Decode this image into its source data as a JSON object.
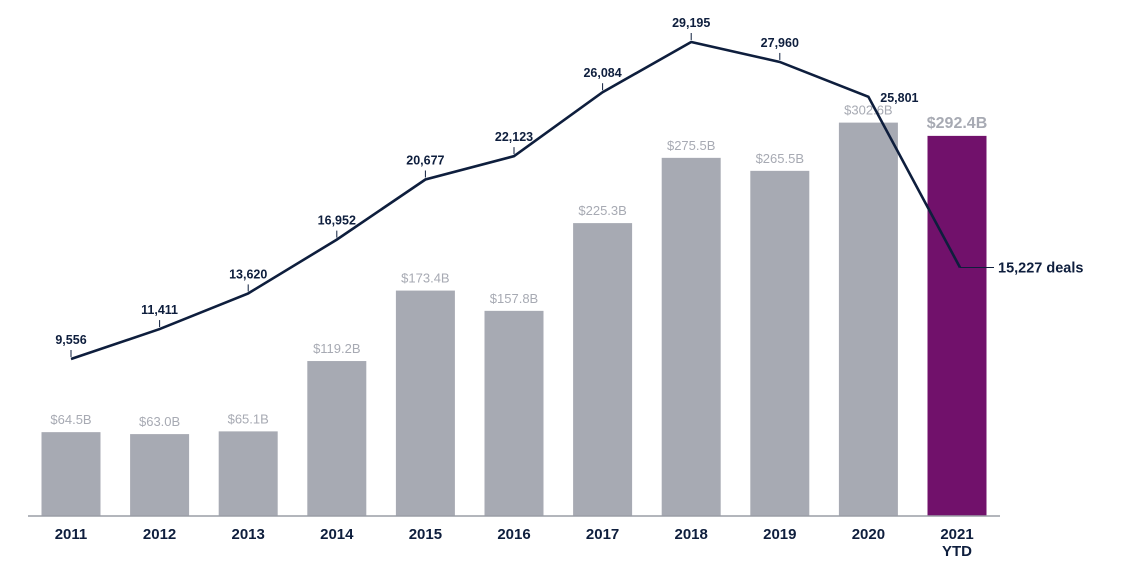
{
  "chart_data": {
    "type": "bar",
    "title": "",
    "xlabel": "",
    "ylabel": "",
    "categories": [
      "2011",
      "2012",
      "2013",
      "2014",
      "2015",
      "2016",
      "2017",
      "2018",
      "2019",
      "2020",
      "2021 YTD"
    ],
    "category_lines": [
      [
        "2011"
      ],
      [
        "2012"
      ],
      [
        "2013"
      ],
      [
        "2014"
      ],
      [
        "2015"
      ],
      [
        "2016"
      ],
      [
        "2017"
      ],
      [
        "2018"
      ],
      [
        "2019"
      ],
      [
        "2020"
      ],
      [
        "2021",
        "YTD"
      ]
    ],
    "bar_series": {
      "unit": "$B",
      "values": [
        64.5,
        63.0,
        65.1,
        119.2,
        173.4,
        157.8,
        225.3,
        275.5,
        265.5,
        302.6,
        292.4
      ],
      "labels": [
        "$64.5B",
        "$63.0B",
        "$65.1B",
        "$119.2B",
        "$173.4B",
        "$157.8B",
        "$225.3B",
        "$275.5B",
        "$265.5B",
        "$302.6B",
        "$292.4B"
      ]
    },
    "line_series": {
      "unit": "deals",
      "values": [
        9556,
        11411,
        13620,
        16952,
        20677,
        22123,
        26084,
        29195,
        27960,
        25801,
        15227
      ],
      "labels": [
        "9,556",
        "11,411",
        "13,620",
        "16,952",
        "20,677",
        "22,123",
        "26,084",
        "29,195",
        "27,960",
        "25,801",
        "15,227 deals"
      ]
    },
    "bar_ylim": [
      0,
      320
    ],
    "line_ylim": [
      0,
      29195
    ],
    "grid": false,
    "legend": "none",
    "colors": {
      "bar": "#a7aab3",
      "highlight_bar": "#71116b",
      "line": "#0e1e3d",
      "axis": "#9a9da6"
    },
    "highlight_index": 10
  }
}
